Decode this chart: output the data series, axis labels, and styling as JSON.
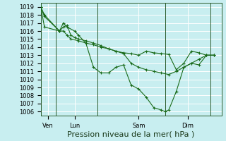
{
  "background_color": "#c8eef0",
  "grid_color": "#ffffff",
  "line_color": "#1a6b1a",
  "xlabel": "Pression niveau de la mer( hPa )",
  "ylim": [
    1005.5,
    1019.5
  ],
  "yticks": [
    1006,
    1007,
    1008,
    1009,
    1010,
    1011,
    1012,
    1013,
    1014,
    1015,
    1016,
    1017,
    1018,
    1019
  ],
  "xlim": [
    0,
    24
  ],
  "x_tick_labels": [
    "Ven",
    "Lun",
    "Sam",
    "Dim"
  ],
  "x_tick_positions": [
    1,
    4.5,
    13,
    19.5
  ],
  "vline_positions": [
    2.0,
    7.5,
    16.5,
    22.5
  ],
  "tick_fontsize": 6,
  "xlabel_fontsize": 8,
  "series1_x": [
    0,
    0.5,
    2.5,
    3,
    3.5,
    4,
    5,
    6,
    7,
    8,
    9,
    10,
    11,
    12,
    13,
    14,
    15,
    16,
    17,
    18,
    19,
    20,
    21,
    22,
    23
  ],
  "series1_y": [
    1019,
    1016.5,
    1016,
    1016,
    1015.5,
    1015,
    1014.8,
    1014.5,
    1014.3,
    1014,
    1013.8,
    1013.5,
    1013.3,
    1013.2,
    1013,
    1013.5,
    1013.3,
    1013.2,
    1013.1,
    1011.2,
    1012,
    1013.5,
    1013.3,
    1013,
    1013
  ],
  "series2_x": [
    0,
    0.5,
    2.5,
    3,
    3.5,
    4.5,
    5,
    6,
    7,
    8,
    9,
    10,
    11,
    12,
    13,
    14,
    15,
    16,
    16.5,
    17,
    18,
    19,
    20,
    21,
    22,
    23
  ],
  "series2_y": [
    1019,
    1017.8,
    1016,
    1017,
    1016.5,
    1016,
    1015.5,
    1014.5,
    1011.5,
    1010.8,
    1010.8,
    1011.5,
    1011.8,
    1009.3,
    1008.8,
    1007.8,
    1006.5,
    1006.2,
    1006,
    1006.2,
    1008.5,
    1011.5,
    1012,
    1011.8,
    1013,
    1013
  ],
  "series3_x": [
    0,
    0.5,
    2.5,
    3,
    3.5,
    4,
    4.5,
    5,
    6,
    7,
    8,
    9,
    10,
    11,
    12,
    13,
    14,
    15,
    16,
    17,
    18,
    19,
    20,
    21,
    22,
    23
  ],
  "series3_y": [
    1019,
    1018,
    1016,
    1016.5,
    1016.7,
    1015.5,
    1015.2,
    1015,
    1014.8,
    1014.5,
    1014.2,
    1013.8,
    1013.5,
    1013.2,
    1012,
    1011.5,
    1011.2,
    1011,
    1010.8,
    1010.6,
    1011,
    1011.5,
    1012,
    1012.5,
    1013,
    1013
  ]
}
